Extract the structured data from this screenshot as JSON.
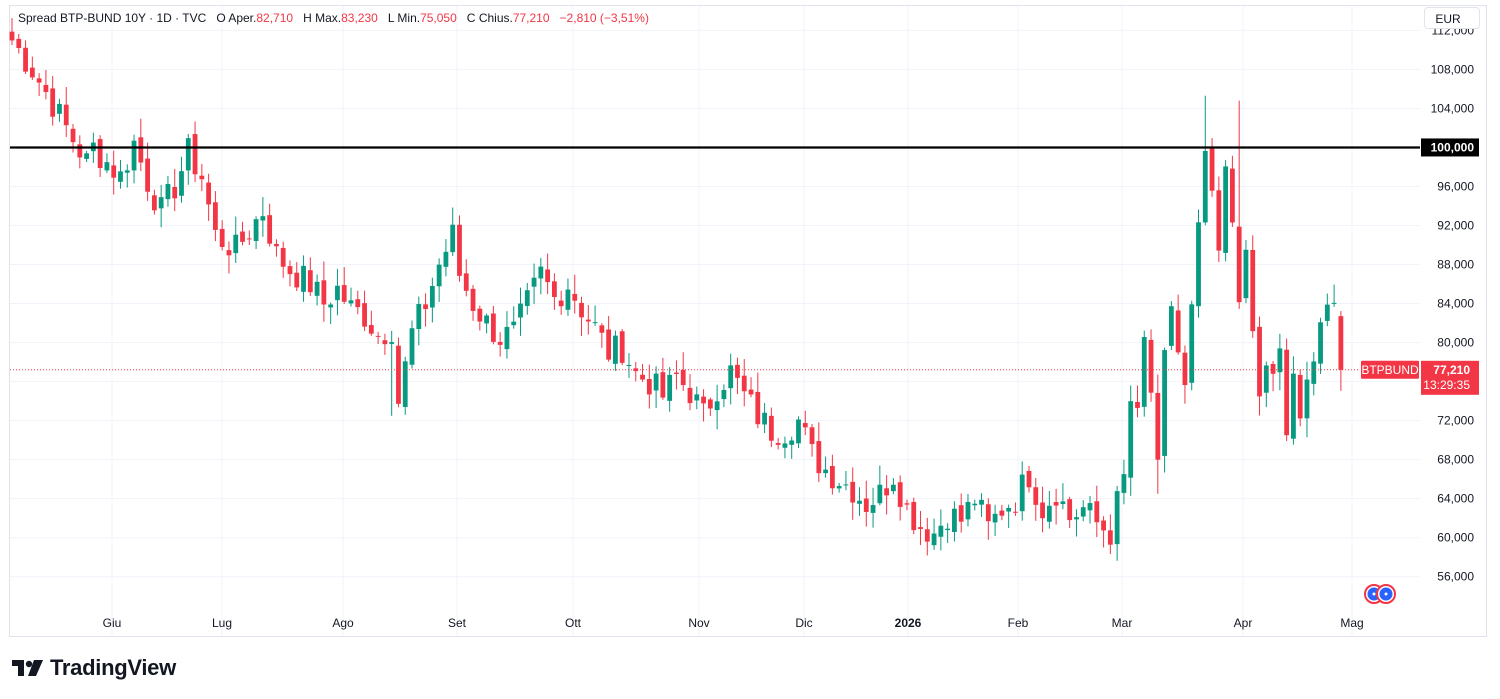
{
  "legend": {
    "symbol": "Spread BTP-BUND 10Y · 1D · TVC",
    "o_label": "O",
    "o_text": "Aper.",
    "o_value": "82,710",
    "h_label": "H",
    "h_text": "Max.",
    "h_value": "83,230",
    "l_label": "L",
    "l_text": "Min.",
    "l_value": "75,050",
    "c_label": "C",
    "c_text": "Chius.",
    "c_value": "77,210",
    "change": "−2,810 (−3,51%)"
  },
  "currency": "EUR",
  "colors": {
    "up": "#089981",
    "down": "#f23645",
    "hline": "#000000",
    "grid": "#f0f3fa",
    "axis_text": "#131722"
  },
  "brand": {
    "name": "TradingView",
    "logo_icon": "tradingview-logo-icon"
  },
  "chart_data": {
    "type": "candlestick",
    "title": "Spread BTP-BUND 10Y",
    "interval": "1D",
    "source": "TVC",
    "currency": "EUR",
    "ylim": [
      53000,
      114500
    ],
    "y_ticks": [
      "56,000",
      "60,000",
      "64,000",
      "68,000",
      "72,000",
      "76,000",
      "80,000",
      "84,000",
      "88,000",
      "92,000",
      "96,000",
      "100,000",
      "104,000",
      "108,000",
      "112,000"
    ],
    "x_labels": [
      "Giu",
      "Lug",
      "Ago",
      "Set",
      "Ott",
      "Nov",
      "Dic",
      "2026",
      "Feb",
      "Mar",
      "Apr",
      "Mag"
    ],
    "horizontal_line": {
      "value": 100000,
      "label": "100,000"
    },
    "last_price": {
      "symbol": "BTPBUND",
      "value": "77,210",
      "countdown": "13:29:35",
      "price": 77210
    },
    "close_path": [
      [
        0,
        111000
      ],
      [
        3,
        108000
      ],
      [
        6,
        104500
      ],
      [
        8,
        102000
      ],
      [
        11,
        98500
      ],
      [
        12,
        100000
      ],
      [
        16,
        97000
      ],
      [
        18,
        100500
      ],
      [
        20,
        96500
      ],
      [
        22,
        93500
      ],
      [
        24,
        96000
      ],
      [
        26,
        99500
      ],
      [
        28,
        97000
      ],
      [
        30,
        91000
      ],
      [
        33,
        89500
      ],
      [
        35,
        91500
      ],
      [
        37,
        93500
      ],
      [
        39,
        89000
      ],
      [
        41,
        87500
      ],
      [
        44,
        86000
      ],
      [
        46,
        84000
      ],
      [
        48,
        85500
      ],
      [
        50,
        83500
      ],
      [
        52,
        82800
      ],
      [
        54,
        80800
      ],
      [
        56,
        81500
      ],
      [
        57,
        74000
      ],
      [
        59,
        81000
      ],
      [
        61,
        84000
      ],
      [
        63,
        88000
      ],
      [
        65,
        91000
      ],
      [
        66,
        87000
      ],
      [
        68,
        84000
      ],
      [
        70,
        82000
      ],
      [
        72,
        80500
      ],
      [
        74,
        81000
      ],
      [
        76,
        84000
      ],
      [
        78,
        87000
      ],
      [
        80,
        84500
      ],
      [
        82,
        86000
      ],
      [
        84,
        83500
      ],
      [
        86,
        81500
      ],
      [
        88,
        79000
      ],
      [
        90,
        79500
      ],
      [
        92,
        76800
      ],
      [
        94,
        76000
      ],
      [
        96,
        74500
      ],
      [
        98,
        76500
      ],
      [
        100,
        75000
      ],
      [
        102,
        72500
      ],
      [
        104,
        75500
      ],
      [
        106,
        77000
      ],
      [
        108,
        74500
      ],
      [
        110,
        72500
      ],
      [
        112,
        71000
      ],
      [
        114,
        71000
      ],
      [
        116,
        72000
      ],
      [
        118,
        68500
      ],
      [
        120,
        67000
      ],
      [
        122,
        66000
      ],
      [
        124,
        65000
      ],
      [
        126,
        63500
      ],
      [
        128,
        64500
      ],
      [
        130,
        66500
      ],
      [
        132,
        63000
      ],
      [
        134,
        61200
      ],
      [
        136,
        60500
      ],
      [
        138,
        62500
      ],
      [
        140,
        61800
      ],
      [
        142,
        64000
      ],
      [
        144,
        61000
      ],
      [
        146,
        63000
      ],
      [
        148,
        64000
      ],
      [
        150,
        66500
      ],
      [
        152,
        63000
      ],
      [
        154,
        64800
      ],
      [
        156,
        62000
      ],
      [
        158,
        63000
      ],
      [
        160,
        61500
      ],
      [
        162,
        60500
      ],
      [
        163,
        63500
      ],
      [
        164,
        66000
      ],
      [
        165,
        74000
      ],
      [
        166,
        72000
      ],
      [
        167,
        80000
      ],
      [
        168,
        75000
      ],
      [
        169,
        66500
      ],
      [
        170,
        78000
      ],
      [
        171,
        84000
      ],
      [
        172,
        79000
      ],
      [
        173,
        75000
      ],
      [
        174,
        83000
      ],
      [
        175,
        91000
      ],
      [
        176,
        99500
      ],
      [
        177,
        94000
      ],
      [
        178,
        89000
      ],
      [
        179,
        97000
      ],
      [
        180,
        92500
      ],
      [
        181,
        85500
      ],
      [
        182,
        88000
      ],
      [
        183,
        81000
      ],
      [
        184,
        74000
      ],
      [
        185,
        78000
      ],
      [
        186,
        76000
      ],
      [
        187,
        78500
      ],
      [
        188,
        70500
      ],
      [
        189,
        77000
      ],
      [
        190,
        71000
      ],
      [
        191,
        75500
      ],
      [
        192,
        79500
      ],
      [
        193,
        82500
      ],
      [
        194,
        84000
      ],
      [
        195,
        82500
      ],
      [
        196,
        77210
      ]
    ],
    "notable_wicks": [
      {
        "date_index": 56,
        "low": 72500
      },
      {
        "date_index": 176,
        "high": 105300
      },
      {
        "date_index": 181,
        "high": 104800
      },
      {
        "date_index": 169,
        "low": 64500
      }
    ]
  }
}
